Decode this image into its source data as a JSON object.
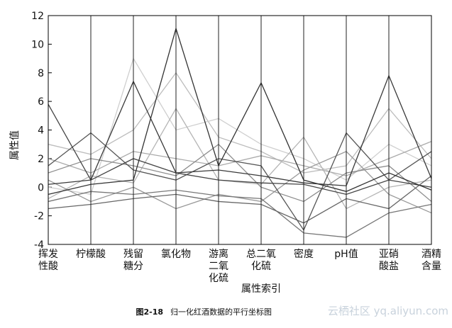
{
  "chart_data": {
    "type": "parallel",
    "xlabel": "属性索引",
    "ylabel": "属性值",
    "categories": [
      "挥发\n性酸",
      "柠檬酸",
      "残留\n糖分",
      "氯化物",
      "游离\n二氧\n化硫",
      "总二氧\n化硫",
      "密度",
      "pH值",
      "亚硝\n酸盐",
      "酒精\n含量"
    ],
    "ylim": [
      -4,
      12
    ],
    "yticks": [
      -4,
      -2,
      0,
      2,
      4,
      6,
      8,
      10,
      12
    ],
    "grid": false,
    "series": [
      {
        "color": "#bdbdbd",
        "values": [
          3.0,
          2.3,
          4.0,
          8.0,
          3.5,
          2.5,
          1.0,
          1.5,
          5.5,
          2.0
        ]
      },
      {
        "color": "#cfcfcf",
        "values": [
          0.0,
          -0.5,
          9.0,
          4.0,
          4.8,
          3.0,
          2.0,
          0.5,
          3.0,
          1.5
        ]
      },
      {
        "color": "#aaaaaa",
        "values": [
          2.0,
          1.0,
          2.5,
          2.0,
          1.5,
          2.2,
          1.5,
          0.8,
          2.0,
          3.2
        ]
      },
      {
        "color": "#b5b5b5",
        "values": [
          -0.8,
          0.8,
          0.3,
          5.5,
          0.5,
          0.2,
          3.5,
          -1.5,
          0.0,
          0.5
        ]
      },
      {
        "color": "#999999",
        "values": [
          0.5,
          -1.0,
          0.0,
          -1.5,
          -0.5,
          -1.0,
          1.2,
          2.5,
          -0.5,
          -1.8
        ]
      },
      {
        "color": "#8c8c8c",
        "values": [
          1.0,
          2.0,
          1.5,
          0.8,
          3.0,
          0.0,
          -1.0,
          1.0,
          1.5,
          -1.0
        ]
      },
      {
        "color": "#777777",
        "values": [
          -1.0,
          -0.3,
          -0.5,
          -0.2,
          -0.6,
          -0.8,
          -3.2,
          -3.5,
          -1.8,
          -1.2
        ]
      },
      {
        "color": "#666666",
        "values": [
          -1.5,
          -1.2,
          -0.8,
          -0.5,
          -1.0,
          -1.2,
          -2.5,
          -0.8,
          -1.5,
          0.8
        ]
      },
      {
        "color": "#555555",
        "values": [
          1.5,
          3.8,
          1.2,
          0.5,
          2.0,
          1.5,
          -3.0,
          3.8,
          0.5,
          2.5
        ]
      },
      {
        "color": "#444444",
        "values": [
          5.8,
          0.5,
          2.0,
          1.0,
          0.5,
          0.3,
          0.2,
          -0.5,
          0.5,
          0.0
        ]
      },
      {
        "color": "#3a3a3a",
        "values": [
          0.2,
          0.5,
          7.4,
          1.0,
          1.2,
          0.8,
          0.3,
          0.1,
          7.8,
          0.6
        ]
      },
      {
        "color": "#333333",
        "values": [
          -0.5,
          0.2,
          0.5,
          11.1,
          1.5,
          7.3,
          0.5,
          -0.3,
          1.0,
          -0.2
        ]
      }
    ]
  },
  "caption": {
    "number": "图2-18",
    "text": "归一化红酒数据的平行坐标图"
  },
  "watermark": "云栖社区 yq.aliyun.com"
}
